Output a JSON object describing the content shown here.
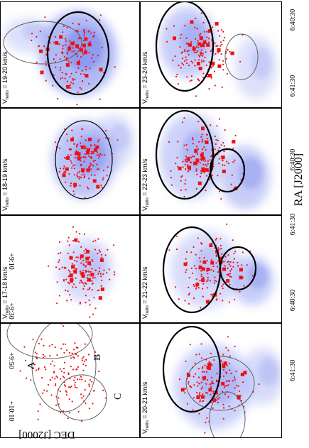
{
  "figure": {
    "xlabel": "RA [J2000]",
    "ylabel": "DEC [J2000]",
    "ra_ticks": [
      "6:41:30",
      "6:40:30"
    ],
    "dec_ticks": [
      "+10:10",
      "+9:50",
      "+9:30",
      "+9:10"
    ],
    "region_labels": [
      "A",
      "B",
      "C"
    ],
    "panels": [
      {
        "label": "V",
        "sub": "helio",
        "range": " = 20-21 km/s"
      },
      {
        "label": "V",
        "sub": "helio",
        "range": " = 21-22 km/s"
      },
      {
        "label": "V",
        "sub": "helio",
        "range": " = 22-23 km/s"
      },
      {
        "label": "V",
        "sub": "helio",
        "range": " = 23-24 km/s"
      },
      {
        "label": "V",
        "sub": "helio",
        "range": " = 17-18 km/s"
      },
      {
        "label": "V",
        "sub": "helio",
        "range": " = 18-19 km/s"
      },
      {
        "label": "V",
        "sub": "helio",
        "range": " = 19-20 km/s"
      }
    ],
    "colors": {
      "points": "#ee1111",
      "gas": "#8f9cf2",
      "frame": "#000000",
      "outline": "#555555"
    }
  }
}
